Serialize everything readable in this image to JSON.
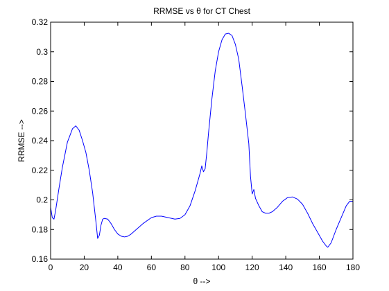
{
  "chart_data": {
    "type": "line",
    "title": "RRMSE vs θ for CT Chest",
    "xlabel": "θ -->",
    "ylabel": "RRMSE -->",
    "xlim": [
      0,
      180
    ],
    "ylim": [
      0.16,
      0.32
    ],
    "x_ticks": [
      0,
      20,
      40,
      60,
      80,
      100,
      120,
      140,
      160,
      180
    ],
    "x_tick_labels": [
      "0",
      "20",
      "40",
      "60",
      "80",
      "100",
      "120",
      "140",
      "160",
      "180"
    ],
    "y_ticks": [
      0.16,
      0.18,
      0.2,
      0.22,
      0.24,
      0.26,
      0.28,
      0.3,
      0.32
    ],
    "y_tick_labels": [
      "0.16",
      "0.18",
      "0.2",
      "0.22",
      "0.24",
      "0.26",
      "0.28",
      "0.3",
      "0.32"
    ],
    "grid": false,
    "series": [
      {
        "color": "#0000ff",
        "x": [
          0,
          1,
          2,
          3,
          5,
          7,
          10,
          13,
          15,
          17,
          19,
          21,
          23,
          25,
          26,
          27,
          28,
          29,
          30,
          31,
          32,
          34,
          36,
          38,
          40,
          42,
          44,
          46,
          48,
          50,
          55,
          60,
          63,
          66,
          70,
          74,
          77,
          80,
          83,
          86,
          88,
          89,
          90,
          91,
          92,
          93,
          94,
          96,
          98,
          100,
          102,
          104,
          106,
          108,
          110,
          112,
          114,
          116,
          118,
          119,
          120,
          121,
          122,
          124,
          126,
          128,
          130,
          132,
          135,
          138,
          141,
          144,
          147,
          150,
          153,
          156,
          159,
          162,
          164,
          165,
          167,
          170,
          173,
          176,
          178,
          180
        ],
        "y": [
          0.195,
          0.188,
          0.187,
          0.193,
          0.208,
          0.222,
          0.239,
          0.248,
          0.25,
          0.247,
          0.24,
          0.232,
          0.22,
          0.205,
          0.195,
          0.185,
          0.174,
          0.176,
          0.183,
          0.187,
          0.1875,
          0.187,
          0.184,
          0.18,
          0.177,
          0.1755,
          0.175,
          0.1755,
          0.177,
          0.179,
          0.184,
          0.188,
          0.189,
          0.189,
          0.188,
          0.187,
          0.1875,
          0.19,
          0.196,
          0.206,
          0.214,
          0.218,
          0.223,
          0.219,
          0.221,
          0.232,
          0.245,
          0.268,
          0.287,
          0.3,
          0.308,
          0.312,
          0.3125,
          0.311,
          0.305,
          0.295,
          0.277,
          0.258,
          0.238,
          0.216,
          0.204,
          0.207,
          0.201,
          0.196,
          0.192,
          0.191,
          0.191,
          0.192,
          0.195,
          0.199,
          0.2015,
          0.202,
          0.2005,
          0.197,
          0.191,
          0.184,
          0.178,
          0.172,
          0.169,
          0.168,
          0.171,
          0.18,
          0.188,
          0.196,
          0.199,
          0.199
        ]
      }
    ]
  }
}
